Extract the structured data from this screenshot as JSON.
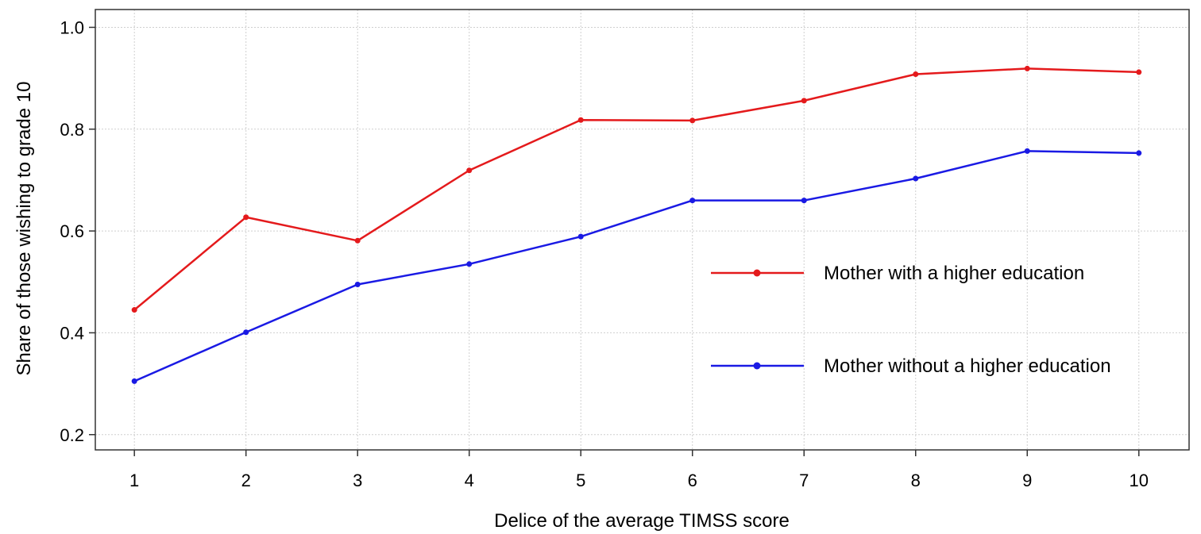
{
  "chart_data": {
    "type": "line",
    "title": "",
    "xlabel": "Delice of the average TIMSS score",
    "ylabel": "Share of those wishing to grade 10",
    "x": [
      1,
      2,
      3,
      4,
      5,
      6,
      7,
      8,
      9,
      10
    ],
    "x_tick_labels": [
      "1",
      "2",
      "3",
      "4",
      "5",
      "6",
      "7",
      "8",
      "9",
      "10"
    ],
    "y_ticks": [
      0.2,
      0.4,
      0.6,
      0.8,
      1.0
    ],
    "y_tick_labels": [
      "0.2",
      "0.4",
      "0.6",
      "0.8",
      "1.0"
    ],
    "xlim": [
      0.65,
      10.45
    ],
    "ylim": [
      0.17,
      1.035
    ],
    "grid": true,
    "legend_position": "right-center",
    "series": [
      {
        "name": "Mother with a higher education",
        "color": "#e41a1c",
        "values": [
          0.445,
          0.627,
          0.581,
          0.719,
          0.818,
          0.817,
          0.856,
          0.908,
          0.919,
          0.912
        ]
      },
      {
        "name": "Mother without a higher education",
        "color": "#1a1ae4",
        "values": [
          0.305,
          0.401,
          0.495,
          0.535,
          0.589,
          0.66,
          0.66,
          0.703,
          0.757,
          0.753
        ]
      }
    ]
  }
}
